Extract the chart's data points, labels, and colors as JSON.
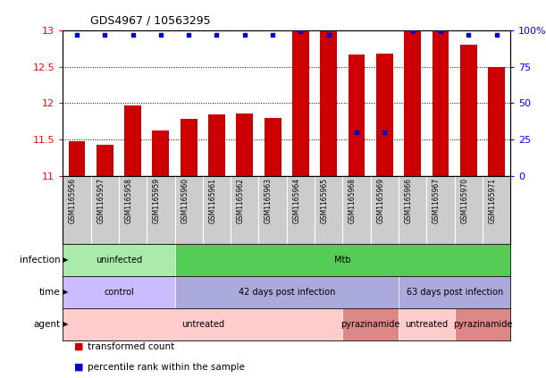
{
  "title": "GDS4967 / 10563295",
  "samples": [
    "GSM1165956",
    "GSM1165957",
    "GSM1165958",
    "GSM1165959",
    "GSM1165960",
    "GSM1165961",
    "GSM1165962",
    "GSM1165963",
    "GSM1165964",
    "GSM1165965",
    "GSM1165968",
    "GSM1165969",
    "GSM1165966",
    "GSM1165967",
    "GSM1165970",
    "GSM1165971"
  ],
  "transformed_counts": [
    11.47,
    11.43,
    11.97,
    11.62,
    11.78,
    11.84,
    11.85,
    11.8,
    13.0,
    13.0,
    12.67,
    12.68,
    13.0,
    13.0,
    12.8,
    12.5
  ],
  "percentile_ranks": [
    97,
    97,
    97,
    97,
    97,
    97,
    97,
    97,
    99,
    97,
    30,
    30,
    99,
    99,
    97,
    97
  ],
  "bar_color": "#cc0000",
  "dot_color": "#0000cc",
  "ylim_left": [
    11,
    13
  ],
  "ylim_right": [
    0,
    100
  ],
  "yticks_left": [
    11,
    11.5,
    12,
    12.5,
    13
  ],
  "yticks_right": [
    0,
    25,
    50,
    75,
    100
  ],
  "annotation_rows": [
    {
      "label": "infection",
      "segments": [
        {
          "text": "uninfected",
          "start": 0,
          "end": 4,
          "color": "#aaeaaa"
        },
        {
          "text": "Mtb",
          "start": 4,
          "end": 16,
          "color": "#55cc55"
        }
      ]
    },
    {
      "label": "time",
      "segments": [
        {
          "text": "control",
          "start": 0,
          "end": 4,
          "color": "#ccbbff"
        },
        {
          "text": "42 days post infection",
          "start": 4,
          "end": 12,
          "color": "#aaaadd"
        },
        {
          "text": "63 days post infection",
          "start": 12,
          "end": 16,
          "color": "#aaaadd"
        }
      ]
    },
    {
      "label": "agent",
      "segments": [
        {
          "text": "untreated",
          "start": 0,
          "end": 10,
          "color": "#ffcccc"
        },
        {
          "text": "pyrazinamide",
          "start": 10,
          "end": 12,
          "color": "#dd8888"
        },
        {
          "text": "untreated",
          "start": 12,
          "end": 14,
          "color": "#ffcccc"
        },
        {
          "text": "pyrazinamide",
          "start": 14,
          "end": 16,
          "color": "#dd8888"
        }
      ]
    }
  ],
  "legend_items": [
    {
      "label": "transformed count",
      "color": "#cc0000"
    },
    {
      "label": "percentile rank within the sample",
      "color": "#0000cc"
    }
  ],
  "background_color": "#ffffff",
  "sample_label_bg": "#cccccc",
  "title_fontsize": 9
}
